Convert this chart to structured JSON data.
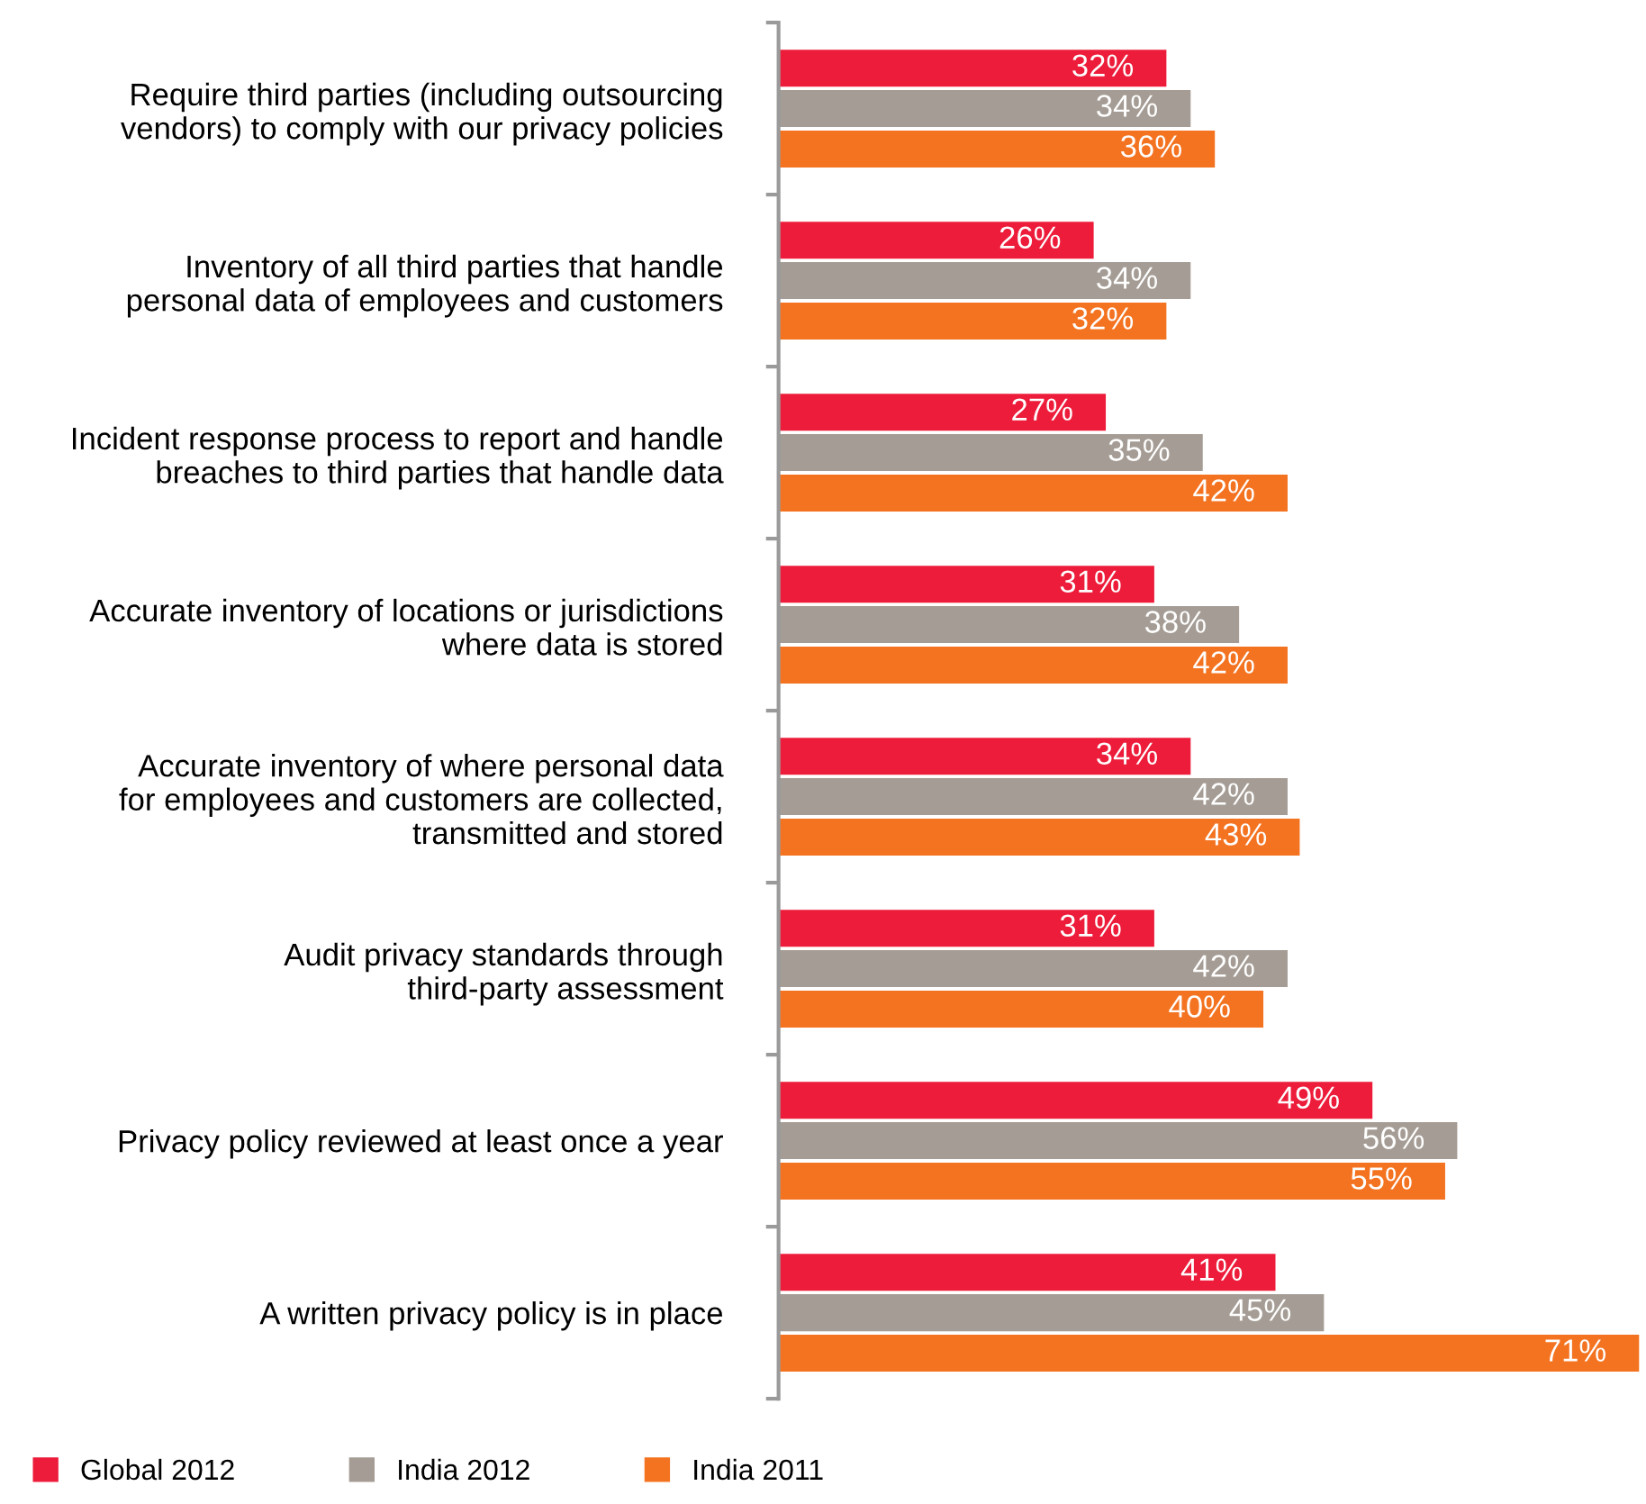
{
  "chart_data": {
    "type": "bar",
    "orientation": "horizontal",
    "categories": [
      "Require third parties (including outsourcing\nvendors) to comply with our privacy policies",
      "Inventory of all third parties that handle\npersonal data of employees and customers",
      "Incident response process to report and handle\nbreaches to third parties that handle data",
      "Accurate inventory of locations or jurisdictions\nwhere data is stored",
      "Accurate inventory of where personal data\nfor employees and customers are collected,\ntransmitted and stored",
      "Audit privacy standards through\nthird-party assessment",
      "Privacy policy reviewed at least once a year",
      "A written privacy policy is in place"
    ],
    "series": [
      {
        "name": "Global 2012",
        "color": "#ed1c3a",
        "values": [
          32,
          26,
          27,
          31,
          34,
          31,
          49,
          41
        ],
        "value_labels": [
          "32%",
          "26%",
          "27%",
          "31%",
          "34%",
          "31%",
          "49%",
          "41%"
        ]
      },
      {
        "name": "India 2012",
        "color": "#a59d95",
        "values": [
          34,
          34,
          35,
          38,
          42,
          42,
          56,
          45
        ],
        "value_labels": [
          "34%",
          "34%",
          "35%",
          "38%",
          "42%",
          "42%",
          "56%",
          "45%"
        ]
      },
      {
        "name": "India 2011",
        "color": "#f47321",
        "values": [
          36,
          32,
          42,
          42,
          43,
          40,
          55,
          71
        ],
        "value_labels": [
          "36%",
          "32%",
          "42%",
          "42%",
          "43%",
          "40%",
          "55%",
          "71%"
        ]
      }
    ],
    "xlim": [
      0,
      71.3
    ],
    "tick_labels": "y",
    "grid": false,
    "legend": "bottom left"
  }
}
